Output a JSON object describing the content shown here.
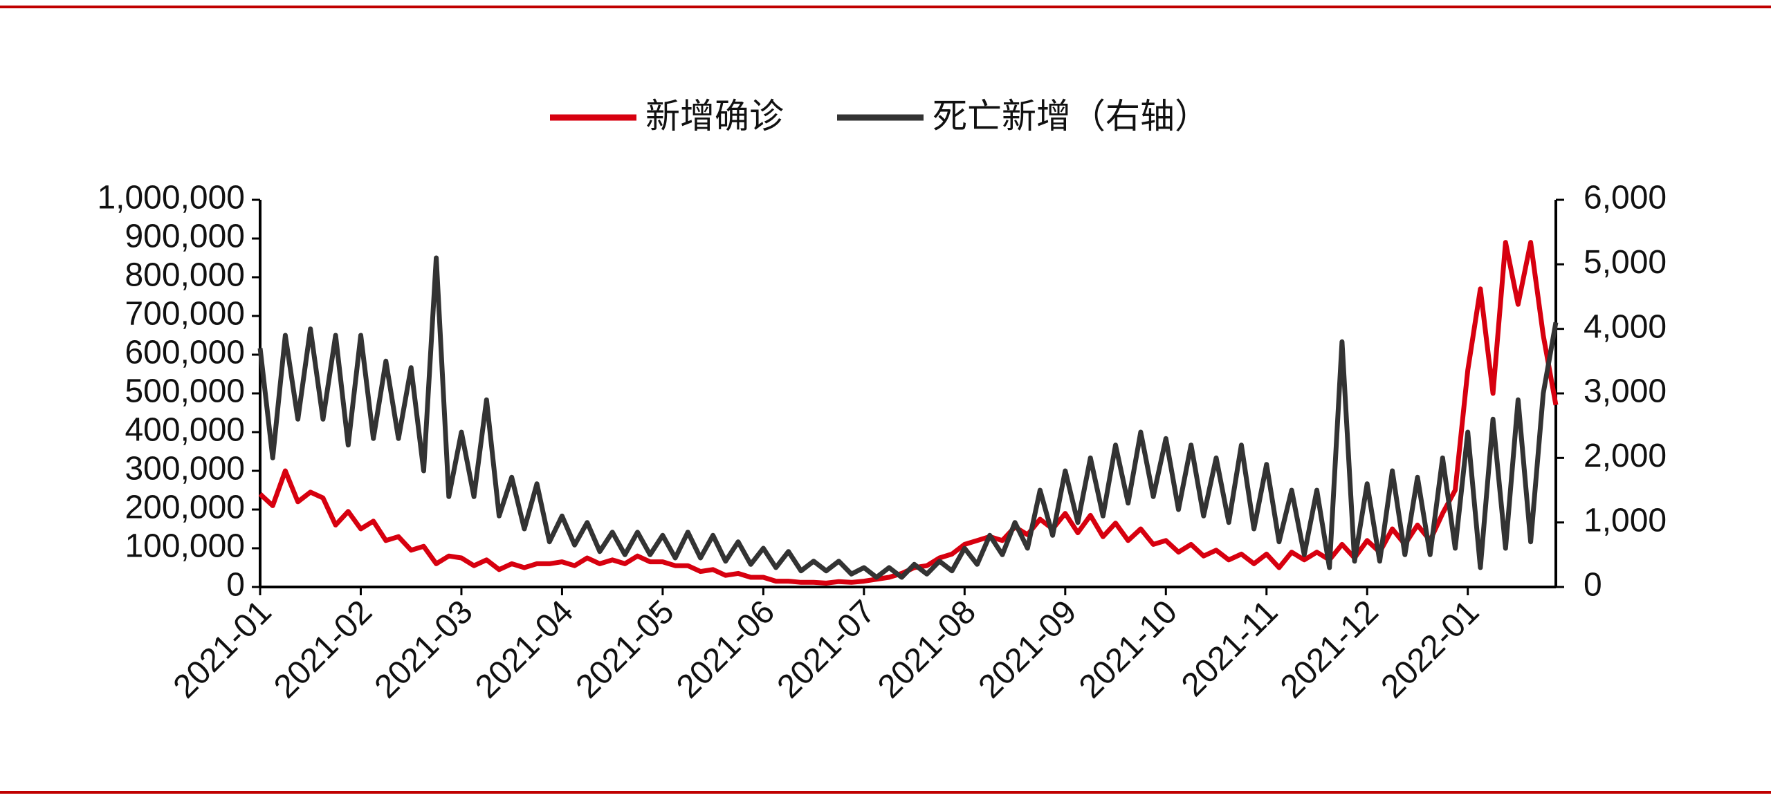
{
  "chart_data": {
    "type": "line",
    "categories": [
      "2021-01",
      null,
      null,
      null,
      null,
      null,
      null,
      null,
      "2021-02",
      null,
      null,
      null,
      null,
      null,
      null,
      null,
      "2021-03",
      null,
      null,
      null,
      null,
      null,
      null,
      null,
      "2021-04",
      null,
      null,
      null,
      null,
      null,
      null,
      null,
      "2021-05",
      null,
      null,
      null,
      null,
      null,
      null,
      null,
      "2021-06",
      null,
      null,
      null,
      null,
      null,
      null,
      null,
      "2021-07",
      null,
      null,
      null,
      null,
      null,
      null,
      null,
      "2021-08",
      null,
      null,
      null,
      null,
      null,
      null,
      null,
      "2021-09",
      null,
      null,
      null,
      null,
      null,
      null,
      null,
      "2021-10",
      null,
      null,
      null,
      null,
      null,
      null,
      null,
      "2021-11",
      null,
      null,
      null,
      null,
      null,
      null,
      null,
      "2021-12",
      null,
      null,
      null,
      null,
      null,
      null,
      null,
      "2022-01",
      null,
      null,
      null,
      null,
      null,
      null,
      null
    ],
    "series": [
      {
        "name": "新增确诊",
        "color": "#d7000f",
        "axis": "y",
        "values": [
          240000,
          210000,
          300000,
          220000,
          245000,
          230000,
          160000,
          195000,
          150000,
          170000,
          120000,
          130000,
          95000,
          105000,
          60000,
          80000,
          75000,
          55000,
          70000,
          45000,
          60000,
          50000,
          60000,
          60000,
          65000,
          55000,
          75000,
          60000,
          70000,
          60000,
          80000,
          65000,
          65000,
          55000,
          55000,
          40000,
          45000,
          30000,
          35000,
          25000,
          25000,
          15000,
          15000,
          12000,
          12000,
          10000,
          14000,
          12000,
          15000,
          20000,
          25000,
          35000,
          50000,
          55000,
          75000,
          85000,
          110000,
          120000,
          130000,
          120000,
          155000,
          135000,
          175000,
          150000,
          190000,
          140000,
          185000,
          130000,
          165000,
          120000,
          150000,
          110000,
          120000,
          90000,
          110000,
          80000,
          95000,
          70000,
          85000,
          60000,
          85000,
          50000,
          90000,
          70000,
          90000,
          70000,
          110000,
          75000,
          120000,
          90000,
          150000,
          110000,
          160000,
          120000,
          190000,
          250000,
          560000,
          770000,
          500000,
          890000,
          730000,
          890000,
          650000,
          470000
        ]
      },
      {
        "name": "死亡新增（右轴）",
        "color": "#333333",
        "axis": "y2",
        "values": [
          3700,
          2000,
          3900,
          2600,
          4000,
          2600,
          3900,
          2200,
          3900,
          2300,
          3500,
          2300,
          3400,
          1800,
          5100,
          1400,
          2400,
          1400,
          2900,
          1100,
          1700,
          900,
          1600,
          700,
          1100,
          650,
          1000,
          550,
          850,
          500,
          850,
          500,
          800,
          450,
          850,
          450,
          800,
          400,
          700,
          350,
          600,
          300,
          550,
          250,
          400,
          250,
          400,
          200,
          300,
          150,
          300,
          150,
          350,
          200,
          400,
          250,
          600,
          350,
          800,
          500,
          1000,
          600,
          1500,
          800,
          1800,
          1000,
          2000,
          1100,
          2200,
          1300,
          2400,
          1400,
          2300,
          1200,
          2200,
          1100,
          2000,
          1000,
          2200,
          900,
          1900,
          700,
          1500,
          500,
          1500,
          300,
          3800,
          400,
          1600,
          400,
          1800,
          500,
          1700,
          500,
          2000,
          600,
          2400,
          300,
          2600,
          600,
          2900,
          700,
          3000,
          4100
        ]
      }
    ],
    "ylim": [
      0,
      1000000
    ],
    "yticks": [
      0,
      {
        "value": 100000,
        "label": "100,000"
      },
      {
        "value": 200000,
        "label": "200,000"
      },
      {
        "value": 300000,
        "label": "300,000"
      },
      {
        "value": 400000,
        "label": "400,000"
      },
      {
        "value": 500000,
        "label": "500,000"
      },
      {
        "value": 600000,
        "label": "600,000"
      },
      {
        "value": 700000,
        "label": "700,000"
      },
      {
        "value": 800000,
        "label": "800,000"
      },
      {
        "value": 900000,
        "label": "900,000"
      },
      {
        "value": 1000000,
        "label": "1,000,000"
      }
    ],
    "y2lim": [
      0,
      6000
    ],
    "y2ticks": [
      0,
      {
        "value": 1000,
        "label": "1,000"
      },
      {
        "value": 2000,
        "label": "2,000"
      },
      {
        "value": 3000,
        "label": "3,000"
      },
      {
        "value": 4000,
        "label": "4,000"
      },
      {
        "value": 5000,
        "label": "5,000"
      },
      {
        "value": 6000,
        "label": "6,000"
      }
    ],
    "legend": "top",
    "grid": false
  }
}
